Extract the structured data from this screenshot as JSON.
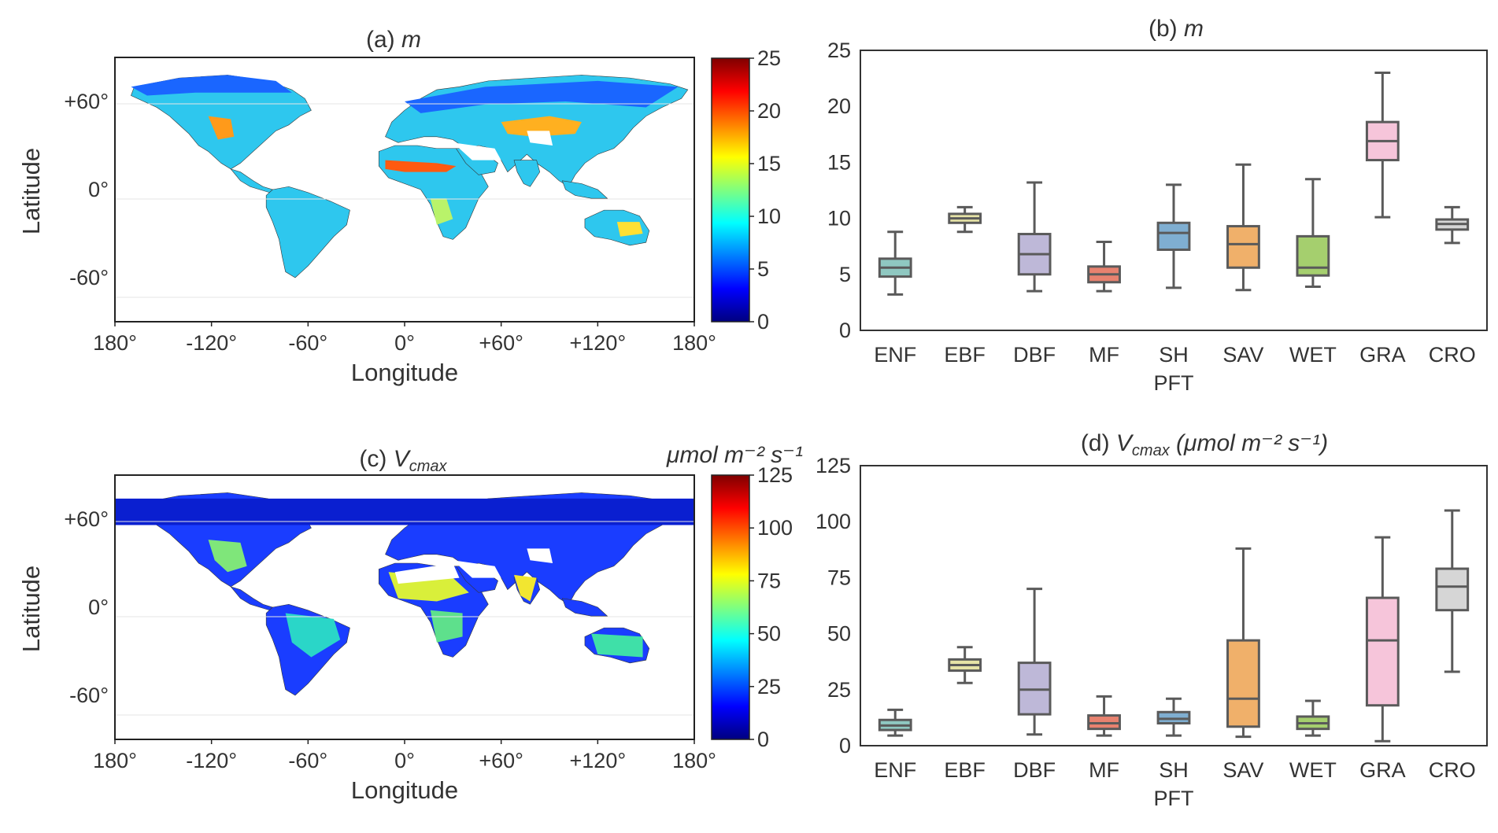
{
  "panels": {
    "a": {
      "title_prefix": "(a) ",
      "title_var": "m"
    },
    "b": {
      "title_prefix": "(b) ",
      "title_var": "m"
    },
    "c": {
      "title_prefix": "(c) ",
      "title_var": "V",
      "title_sub": "cmax"
    },
    "d": {
      "title_prefix": "(d) ",
      "title_var": "V",
      "title_sub": "cmax",
      "title_unit": " (μmol m⁻² s⁻¹)"
    }
  },
  "map_axes": {
    "xlabel": "Longitude",
    "ylabel": "Latitude",
    "xticks": [
      "180°",
      "-120°",
      "-60°",
      "0°",
      "+60°",
      "+120°",
      "180°"
    ],
    "yticks": [
      "+60°",
      "0°",
      "-60°"
    ]
  },
  "colorbars": {
    "m": {
      "ticks": [
        "25",
        "20",
        "15",
        "10",
        "5",
        "0"
      ],
      "range": [
        0,
        25
      ]
    },
    "vcmax": {
      "unit": "μmol m⁻² s⁻¹",
      "ticks": [
        "125",
        "100",
        "75",
        "50",
        "25",
        "0"
      ],
      "range": [
        0,
        125
      ]
    }
  },
  "colors": {
    "ENF": "#8fc8c1",
    "EBF": "#e6e3a6",
    "DBF": "#beb8d8",
    "MF": "#e8826f",
    "SH": "#7faed1",
    "SAV": "#f0b06a",
    "WET": "#a5cf6e",
    "GRA": "#f6c5da",
    "CRO": "#d6d6d6",
    "jet": [
      "#00007f",
      "#0000ff",
      "#007fff",
      "#00ffff",
      "#7fff7f",
      "#ffff00",
      "#ff7f00",
      "#ff0000",
      "#7f0000"
    ]
  },
  "chart_data": [
    {
      "type": "box",
      "id": "b",
      "title": "(b) m",
      "xlabel": "PFT",
      "ylabel": "",
      "categories": [
        "ENF",
        "EBF",
        "DBF",
        "MF",
        "SH",
        "SAV",
        "WET",
        "GRA",
        "CRO"
      ],
      "ylim": [
        0,
        25
      ],
      "yticks": [
        0,
        5,
        10,
        15,
        20,
        25
      ],
      "boxes": [
        {
          "min": 3.2,
          "q1": 4.8,
          "median": 5.6,
          "q3": 6.4,
          "max": 8.8
        },
        {
          "min": 8.8,
          "q1": 9.6,
          "median": 10.0,
          "q3": 10.4,
          "max": 11.0
        },
        {
          "min": 3.5,
          "q1": 5.0,
          "median": 6.8,
          "q3": 8.6,
          "max": 13.2
        },
        {
          "min": 3.5,
          "q1": 4.3,
          "median": 5.0,
          "q3": 5.7,
          "max": 7.9
        },
        {
          "min": 3.8,
          "q1": 7.2,
          "median": 8.7,
          "q3": 9.6,
          "max": 13.0
        },
        {
          "min": 3.6,
          "q1": 5.6,
          "median": 7.7,
          "q3": 9.3,
          "max": 14.8
        },
        {
          "min": 3.9,
          "q1": 4.9,
          "median": 5.6,
          "q3": 8.4,
          "max": 13.5
        },
        {
          "min": 10.1,
          "q1": 15.2,
          "median": 16.9,
          "q3": 18.6,
          "max": 23.0
        },
        {
          "min": 7.8,
          "q1": 9.0,
          "median": 9.5,
          "q3": 9.9,
          "max": 11.0
        }
      ]
    },
    {
      "type": "box",
      "id": "d",
      "title": "(d) Vcmax (μmol m⁻² s⁻¹)",
      "xlabel": "PFT",
      "ylabel": "",
      "categories": [
        "ENF",
        "EBF",
        "DBF",
        "MF",
        "SH",
        "SAV",
        "WET",
        "GRA",
        "CRO"
      ],
      "ylim": [
        0,
        125
      ],
      "yticks": [
        0,
        25,
        50,
        75,
        100,
        125
      ],
      "boxes": [
        {
          "min": 4.5,
          "q1": 7.0,
          "median": 9.0,
          "q3": 11.5,
          "max": 16.0
        },
        {
          "min": 28.0,
          "q1": 33.5,
          "median": 36.0,
          "q3": 38.5,
          "max": 44.0
        },
        {
          "min": 5.0,
          "q1": 14.0,
          "median": 25.0,
          "q3": 37.0,
          "max": 70.0
        },
        {
          "min": 4.5,
          "q1": 7.5,
          "median": 10.0,
          "q3": 13.5,
          "max": 22.0
        },
        {
          "min": 4.5,
          "q1": 10.0,
          "median": 12.0,
          "q3": 15.0,
          "max": 21.0
        },
        {
          "min": 4.0,
          "q1": 8.5,
          "median": 21.0,
          "q3": 47.0,
          "max": 88.0
        },
        {
          "min": 4.5,
          "q1": 7.5,
          "median": 10.0,
          "q3": 13.0,
          "max": 20.0
        },
        {
          "min": 2.0,
          "q1": 18.0,
          "median": 47.0,
          "q3": 66.0,
          "max": 93.0
        },
        {
          "min": 33.0,
          "q1": 60.5,
          "median": 71.0,
          "q3": 79.0,
          "max": 105.0
        }
      ]
    }
  ]
}
